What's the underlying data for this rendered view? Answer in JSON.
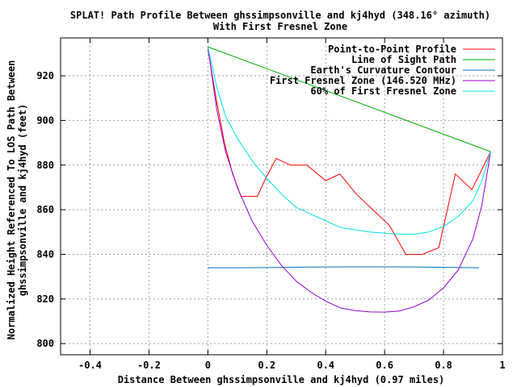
{
  "chart_data": {
    "type": "line",
    "title": "SPLAT! Path Profile Between ghssimpsonville and kj4hyd (348.16° azimuth)",
    "subtitle": "With First Fresnel Zone",
    "xlabel": "Distance Between ghssimpsonville and kj4hyd (0.97 miles)",
    "ylabel_line1": "Normalized Height Referenced To LOS Path Between",
    "ylabel_line2": "ghssimpsonville and kj4hyd (feet)",
    "xlim": [
      -0.5,
      1.0
    ],
    "ylim": [
      795,
      937
    ],
    "xticks": [
      -0.4,
      -0.2,
      0,
      0.2,
      0.4,
      0.6,
      0.8,
      1
    ],
    "xtick_labels": [
      "-0.4",
      "-0.2",
      "0",
      "0.2",
      "0.4",
      "0.6",
      "0.8",
      "1"
    ],
    "yticks": [
      800,
      820,
      840,
      860,
      880,
      900,
      920
    ],
    "ytick_labels": [
      "800",
      "820",
      "840",
      "860",
      "880",
      "900",
      "920"
    ],
    "grid": true,
    "legend_position": "top-right",
    "series": [
      {
        "name": "Point-to-Point Profile",
        "color": "#ff0000",
        "x": [
          0,
          0.028,
          0.056,
          0.084,
          0.112,
          0.14,
          0.168,
          0.196,
          0.232,
          0.28,
          0.336,
          0.4,
          0.448,
          0.504,
          0.56,
          0.616,
          0.672,
          0.728,
          0.784,
          0.84,
          0.896,
          0.96
        ],
        "y": [
          932,
          910,
          890,
          876,
          866,
          866,
          866,
          874,
          883,
          880,
          880,
          873,
          876,
          867,
          860,
          853,
          840,
          840,
          843,
          876,
          869,
          886
        ]
      },
      {
        "name": "Line of Sight Path",
        "color": "#00b000",
        "x": [
          0,
          0.96
        ],
        "y": [
          933,
          886
        ]
      },
      {
        "name": "Earth's Curvature Contour",
        "color": "#0070c0",
        "x": [
          0,
          0.12,
          0.24,
          0.36,
          0.48,
          0.6,
          0.72,
          0.84,
          0.92
        ],
        "y": [
          834,
          834,
          834.1,
          834.3,
          834.4,
          834.4,
          834.3,
          834.1,
          834
        ]
      },
      {
        "name": "First Fresnel Zone (146.520 MHz)",
        "color": "#9400d3",
        "x": [
          0,
          0.03,
          0.06,
          0.1,
          0.15,
          0.2,
          0.25,
          0.3,
          0.35,
          0.4,
          0.45,
          0.5,
          0.55,
          0.6,
          0.65,
          0.7,
          0.75,
          0.8,
          0.85,
          0.9,
          0.93,
          0.96
        ],
        "y": [
          933,
          905,
          886,
          870,
          855,
          844,
          835,
          828,
          823,
          819,
          816,
          814.8,
          814.2,
          814.1,
          814.6,
          816.5,
          819.5,
          825,
          833,
          847,
          862,
          886
        ]
      },
      {
        "name": "60% of First Fresnel Zone",
        "color": "#00e0e0",
        "x": [
          0,
          0.03,
          0.06,
          0.1,
          0.15,
          0.2,
          0.25,
          0.3,
          0.35,
          0.4,
          0.45,
          0.5,
          0.55,
          0.6,
          0.65,
          0.7,
          0.75,
          0.8,
          0.85,
          0.9,
          0.93,
          0.96
        ],
        "y": [
          933,
          915,
          902,
          892,
          882,
          874,
          867,
          861,
          858,
          855,
          852,
          851,
          850,
          849.5,
          849,
          849,
          850,
          852.5,
          857,
          864,
          873,
          886
        ]
      }
    ]
  }
}
